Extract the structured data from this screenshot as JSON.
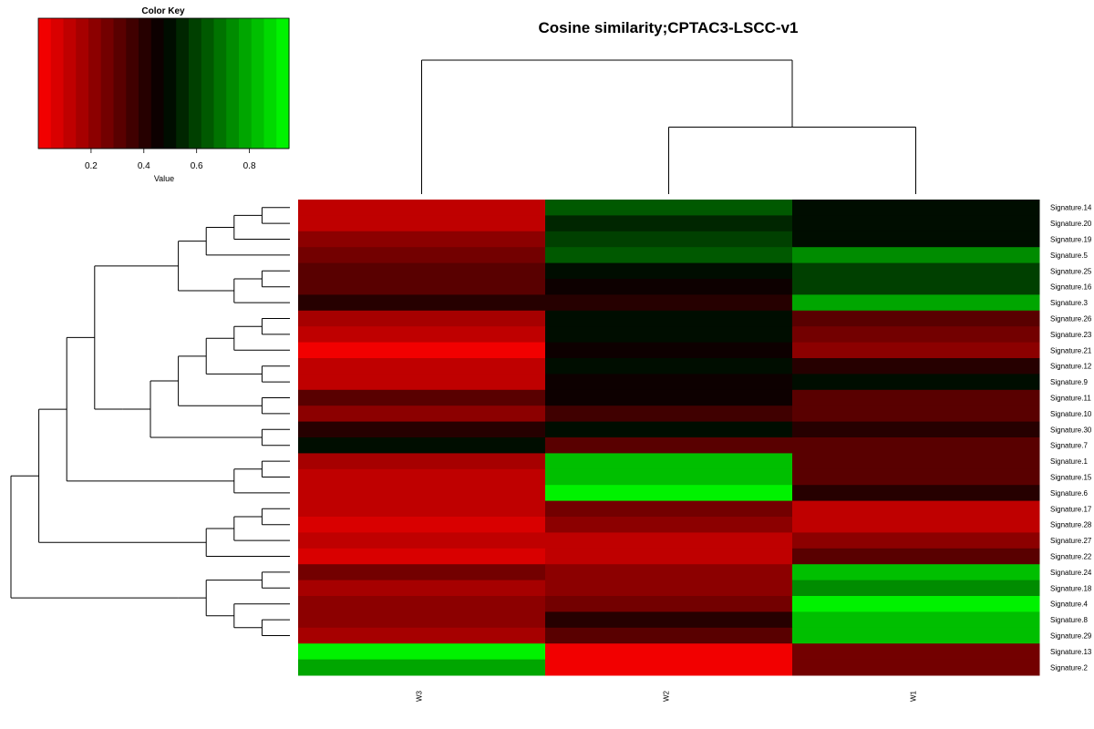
{
  "color_key": {
    "title": "Color Key",
    "xlabel": "Value",
    "ticks": [
      "0.2",
      "0.4",
      "0.6",
      "0.8"
    ],
    "tick_values": [
      0.2,
      0.4,
      0.6,
      0.8
    ],
    "range": [
      0.0,
      0.95
    ],
    "low_color": "#ff0000",
    "mid_color": "#000000",
    "high_color": "#00ff00"
  },
  "chart_data": {
    "type": "heatmap",
    "title": "Cosine similarity;CPTAC3-LSCC-v1",
    "columns": [
      "W3",
      "W2",
      "W1"
    ],
    "rows": [
      "Signature.14",
      "Signature.20",
      "Signature.19",
      "Signature.5",
      "Signature.25",
      "Signature.16",
      "Signature.3",
      "Signature.26",
      "Signature.23",
      "Signature.21",
      "Signature.12",
      "Signature.9",
      "Signature.11",
      "Signature.10",
      "Signature.30",
      "Signature.7",
      "Signature.1",
      "Signature.15",
      "Signature.6",
      "Signature.17",
      "Signature.28",
      "Signature.27",
      "Signature.22",
      "Signature.24",
      "Signature.18",
      "Signature.4",
      "Signature.8",
      "Signature.29",
      "Signature.13",
      "Signature.2"
    ],
    "values": [
      [
        0.12,
        0.65,
        0.52
      ],
      [
        0.12,
        0.55,
        0.52
      ],
      [
        0.2,
        0.6,
        0.52
      ],
      [
        0.25,
        0.65,
        0.72
      ],
      [
        0.3,
        0.5,
        0.6
      ],
      [
        0.3,
        0.45,
        0.57
      ],
      [
        0.4,
        0.4,
        0.8
      ],
      [
        0.15,
        0.5,
        0.3
      ],
      [
        0.1,
        0.5,
        0.25
      ],
      [
        0.03,
        0.44,
        0.22
      ],
      [
        0.12,
        0.48,
        0.4
      ],
      [
        0.12,
        0.45,
        0.49
      ],
      [
        0.3,
        0.44,
        0.33
      ],
      [
        0.2,
        0.37,
        0.3
      ],
      [
        0.42,
        0.48,
        0.4
      ],
      [
        0.49,
        0.31,
        0.3
      ],
      [
        0.18,
        0.85,
        0.33
      ],
      [
        0.1,
        0.85,
        0.33
      ],
      [
        0.1,
        0.91,
        0.38
      ],
      [
        0.1,
        0.24,
        0.12
      ],
      [
        0.05,
        0.2,
        0.12
      ],
      [
        0.1,
        0.1,
        0.2
      ],
      [
        0.05,
        0.1,
        0.33
      ],
      [
        0.25,
        0.2,
        0.85
      ],
      [
        0.15,
        0.2,
        0.75
      ],
      [
        0.2,
        0.25,
        0.95
      ],
      [
        0.2,
        0.4,
        0.82
      ],
      [
        0.15,
        0.33,
        0.82
      ],
      [
        0.92,
        0.02,
        0.26
      ],
      [
        0.8,
        0.02,
        0.26
      ]
    ],
    "col_dendrogram": "(W3,(W2,W1))",
    "row_dendrogram": "((((((((Signature.14,Signature.20),Signature.19),Signature.5),((Signature.25,Signature.16),Signature.3)),((((((Signature.26,Signature.23),Signature.21),(Signature.12,Signature.9)),(Signature.11,Signature.10)),(Signature.30,Signature.7)))),((Signature.1,Signature.15),Signature.6)),(((Signature.17,Signature.28),Signature.27),Signature.22)),(((Signature.24,Signature.18),(Signature.4,(Signature.8,Signature.29))))),(Signature.13,Signature.2))"
  }
}
